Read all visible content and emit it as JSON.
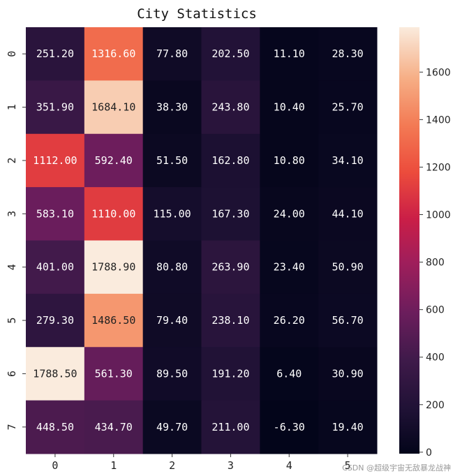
{
  "chart_data": {
    "type": "heatmap",
    "title": "City  Statistics",
    "xlabel": "",
    "ylabel": "",
    "x_categories": [
      "0",
      "1",
      "2",
      "3",
      "4",
      "5"
    ],
    "y_categories": [
      "0",
      "1",
      "2",
      "3",
      "4",
      "5",
      "6",
      "7"
    ],
    "values": [
      [
        251.2,
        1316.6,
        77.8,
        202.5,
        11.1,
        28.3
      ],
      [
        351.9,
        1684.1,
        38.3,
        243.8,
        10.4,
        25.7
      ],
      [
        1112.0,
        592.4,
        51.5,
        162.8,
        10.8,
        34.1
      ],
      [
        583.1,
        1110.0,
        115.0,
        167.3,
        24.0,
        44.1
      ],
      [
        401.0,
        1788.9,
        80.8,
        263.9,
        23.4,
        50.9
      ],
      [
        279.3,
        1486.5,
        79.4,
        238.1,
        26.2,
        56.7
      ],
      [
        1788.5,
        561.3,
        89.5,
        191.2,
        6.4,
        30.9
      ],
      [
        448.5,
        434.7,
        49.7,
        211.0,
        -6.3,
        19.4
      ]
    ],
    "annotations_format": "0.00",
    "colormap": "rocket",
    "color_range": [
      -6.3,
      1788.9
    ],
    "colorbar_ticks": [
      0,
      200,
      400,
      600,
      800,
      1000,
      1200,
      1400,
      1600
    ],
    "colorbar_tick_labels": [
      "0",
      "200",
      "400",
      "600",
      "800",
      "1000",
      "1200",
      "1400",
      "1600"
    ],
    "colorbar_placement": "right"
  },
  "watermark": "CSDN @超级宇宙无敌暴龙战神"
}
